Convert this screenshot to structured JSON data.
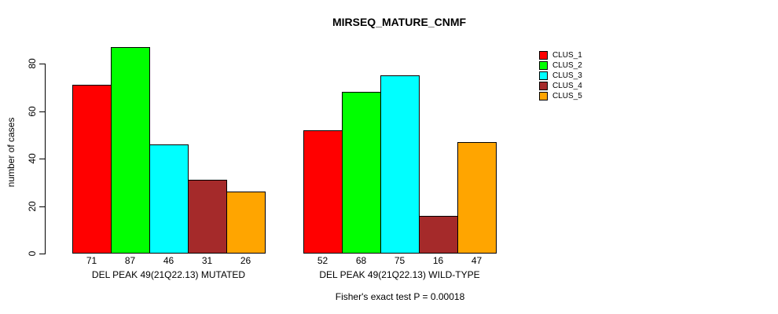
{
  "figure": {
    "background": "#FFFFFF",
    "text_color": "#000000"
  },
  "chart_data": {
    "type": "bar",
    "title": "MIRSEQ_MATURE_CNMF",
    "ylabel": "number of cases",
    "xlabel": "",
    "ylim": [
      0,
      87
    ],
    "yticks": [
      0,
      20,
      40,
      60,
      80
    ],
    "grid": false,
    "legend_position": "top-right",
    "bar_borders": "#000000",
    "categories": [
      "DEL PEAK 49(21Q22.13) MUTATED",
      "DEL PEAK 49(21Q22.13) WILD-TYPE"
    ],
    "series": [
      {
        "name": "CLUS_1",
        "color": "#FF0000",
        "values": [
          71,
          52
        ]
      },
      {
        "name": "CLUS_2",
        "color": "#00FF00",
        "values": [
          87,
          68
        ]
      },
      {
        "name": "CLUS_3",
        "color": "#00FFFF",
        "values": [
          46,
          75
        ]
      },
      {
        "name": "CLUS_4",
        "color": "#A52A2A",
        "values": [
          31,
          16
        ]
      },
      {
        "name": "CLUS_5",
        "color": "#FFA500",
        "values": [
          26,
          47
        ]
      }
    ],
    "annotation": "Fisher's exact test P = 0.00018"
  }
}
